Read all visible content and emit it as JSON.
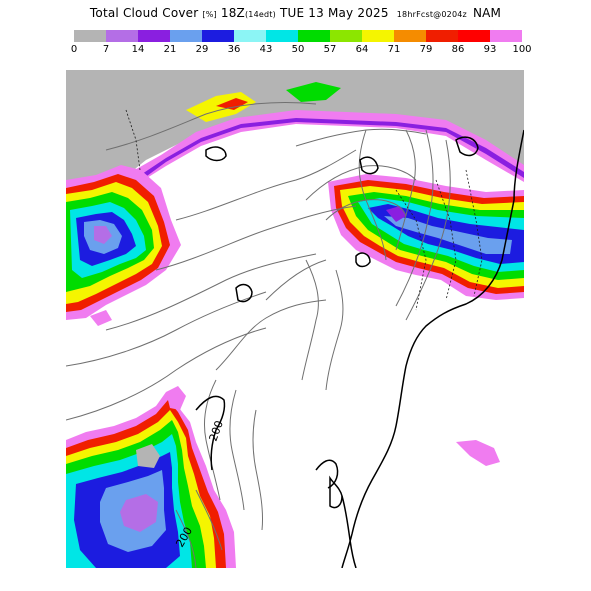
{
  "title": {
    "main": "Total Cloud Cover",
    "units": "[%]",
    "time": "18Z",
    "time_local": "(14edt)",
    "date": "TUE 13 May 2025",
    "forecast": "18hrFcst@0204z",
    "model": "NAM"
  },
  "legend": {
    "ticks": [
      "0",
      "7",
      "14",
      "21",
      "29",
      "36",
      "43",
      "50",
      "57",
      "64",
      "71",
      "79",
      "86",
      "93",
      "100"
    ],
    "colors": [
      "#b4b4b4",
      "#b46ee6",
      "#8a1fe0",
      "#6aa0ee",
      "#1c1ce0",
      "#8cf5f5",
      "#00e6e6",
      "#00dc00",
      "#8ce600",
      "#f5f500",
      "#f58c00",
      "#f01e00",
      "#ff0000",
      "#f07cf0"
    ]
  },
  "map": {
    "contour_labels": [
      "200",
      "200"
    ]
  }
}
